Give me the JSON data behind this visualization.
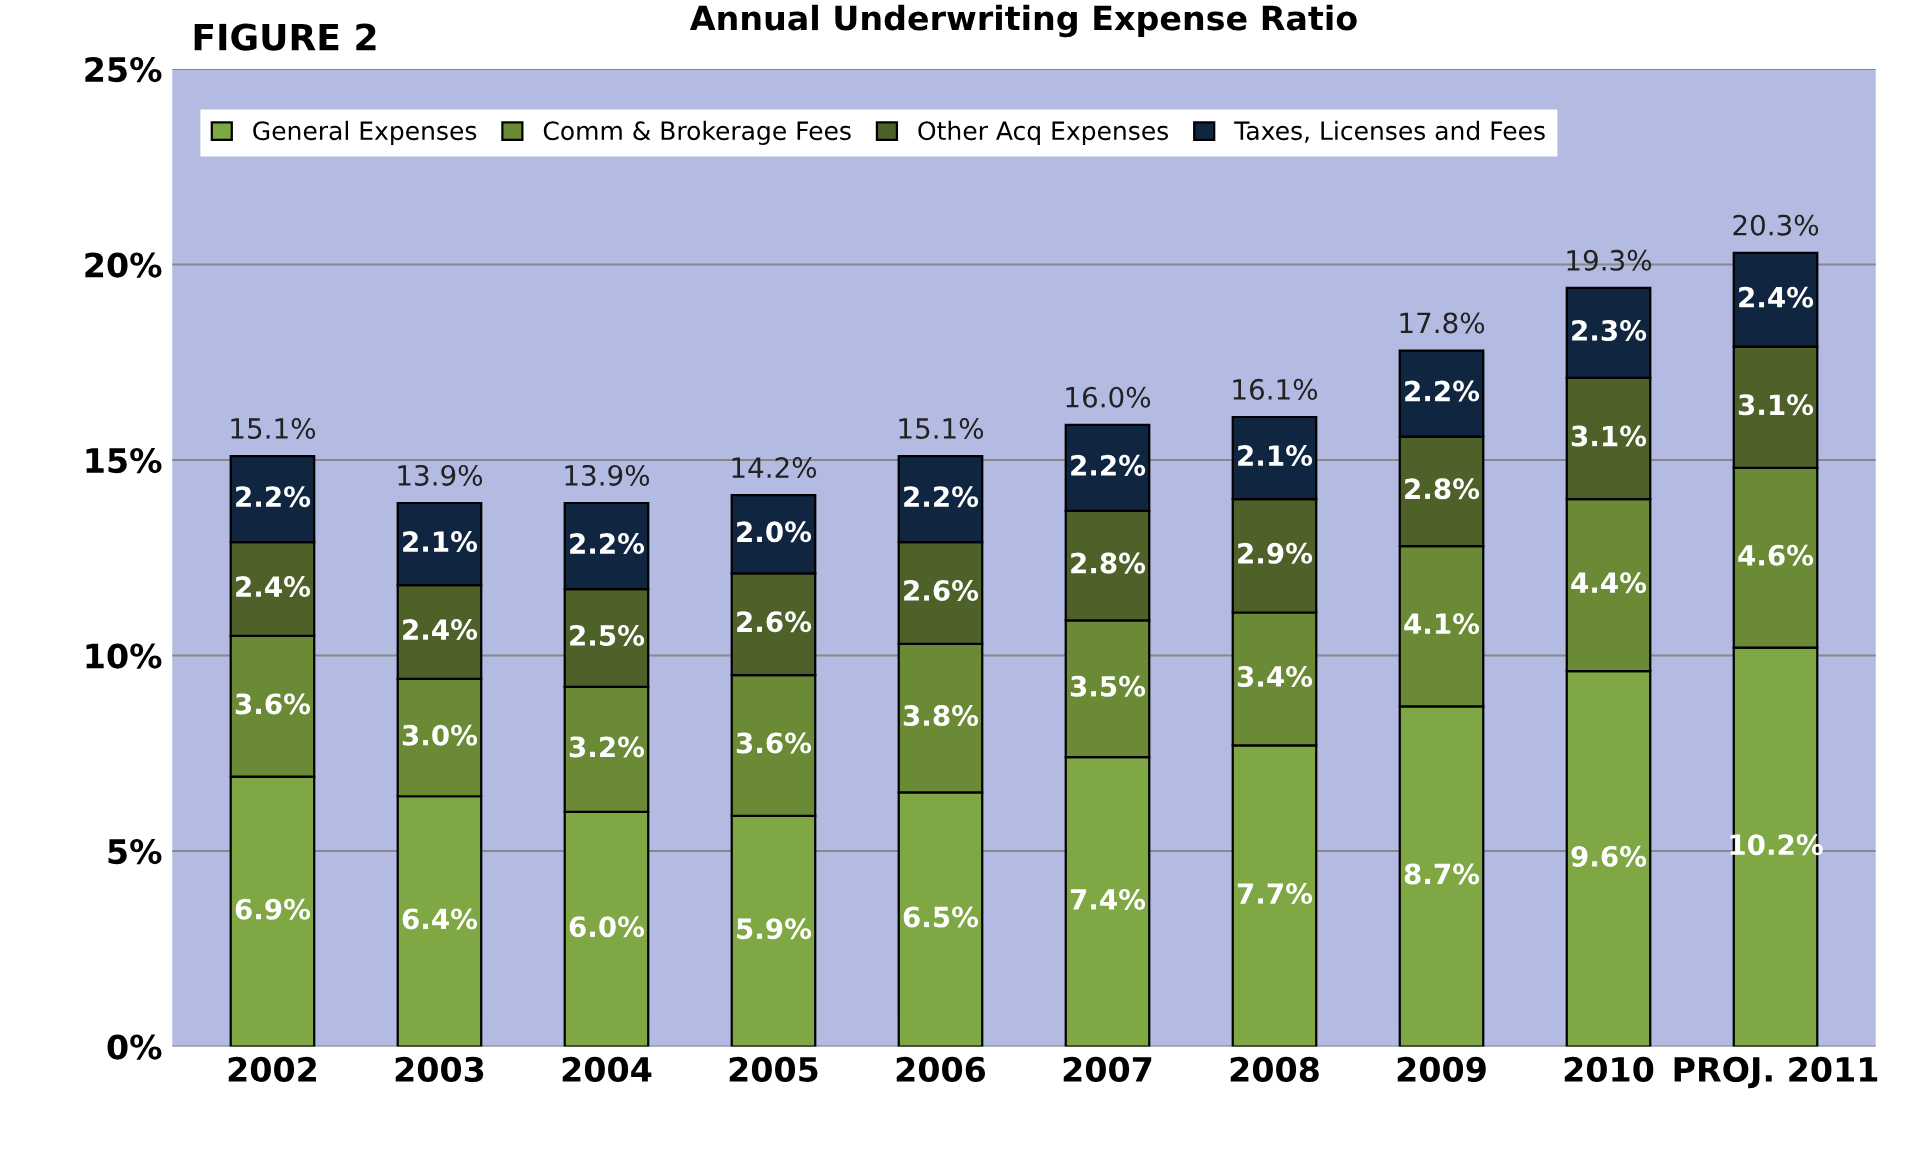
{
  "chart_data": {
    "type": "bar",
    "stacked": true,
    "title": "Annual Underwriting Expense Ratio",
    "annotations": [
      "FIGURE 2"
    ],
    "categories": [
      "2002",
      "2003",
      "2004",
      "2005",
      "2006",
      "2007",
      "2008",
      "2009",
      "2010",
      "PROJ. 2011"
    ],
    "series": [
      {
        "name": "General Expenses",
        "color": "#7fa743",
        "values": [
          6.9,
          6.4,
          6.0,
          5.9,
          6.5,
          7.4,
          7.7,
          8.7,
          9.6,
          10.2
        ],
        "value_labels": [
          "6.9%",
          "6.4%",
          "6.0%",
          "5.9%",
          "6.5%",
          "7.4%",
          "7.7%",
          "8.7%",
          "9.6%",
          "10.2%"
        ]
      },
      {
        "name": "Comm & Brokerage Fees",
        "color": "#6a8a35",
        "values": [
          3.6,
          3.0,
          3.2,
          3.6,
          3.8,
          3.5,
          3.4,
          4.1,
          4.4,
          4.6
        ],
        "value_labels": [
          "3.6%",
          "3.0%",
          "3.2%",
          "3.6%",
          "3.8%",
          "3.5%",
          "3.4%",
          "4.1%",
          "4.4%",
          "4.6%"
        ]
      },
      {
        "name": "Other Acq Expenses",
        "color": "#4e6128",
        "values": [
          2.4,
          2.4,
          2.5,
          2.6,
          2.6,
          2.8,
          2.9,
          2.8,
          3.1,
          3.1
        ],
        "value_labels": [
          "2.4%",
          "2.4%",
          "2.5%",
          "2.6%",
          "2.6%",
          "2.8%",
          "2.9%",
          "2.8%",
          "3.1%",
          "3.1%"
        ]
      },
      {
        "name": "Taxes, Licenses and Fees",
        "color": "#10253f",
        "values": [
          2.2,
          2.1,
          2.2,
          2.0,
          2.2,
          2.2,
          2.1,
          2.2,
          2.3,
          2.4
        ],
        "value_labels": [
          "2.2%",
          "2.1%",
          "2.2%",
          "2.0%",
          "2.2%",
          "2.2%",
          "2.1%",
          "2.2%",
          "2.3%",
          "2.4%"
        ]
      }
    ],
    "totals": [
      "15.1%",
      "13.9%",
      "13.9%",
      "14.2%",
      "15.1%",
      "16.0%",
      "16.1%",
      "17.8%",
      "19.3%",
      "20.3%"
    ],
    "ylim": [
      0,
      25
    ],
    "yticks": [
      {
        "value": 0,
        "label": "0%"
      },
      {
        "value": 5,
        "label": "5%"
      },
      {
        "value": 10,
        "label": "10%"
      },
      {
        "value": 15,
        "label": "15%"
      },
      {
        "value": 20,
        "label": "20%"
      },
      {
        "value": 25,
        "label": "25%"
      }
    ],
    "grid": "y",
    "legend": "top left"
  }
}
